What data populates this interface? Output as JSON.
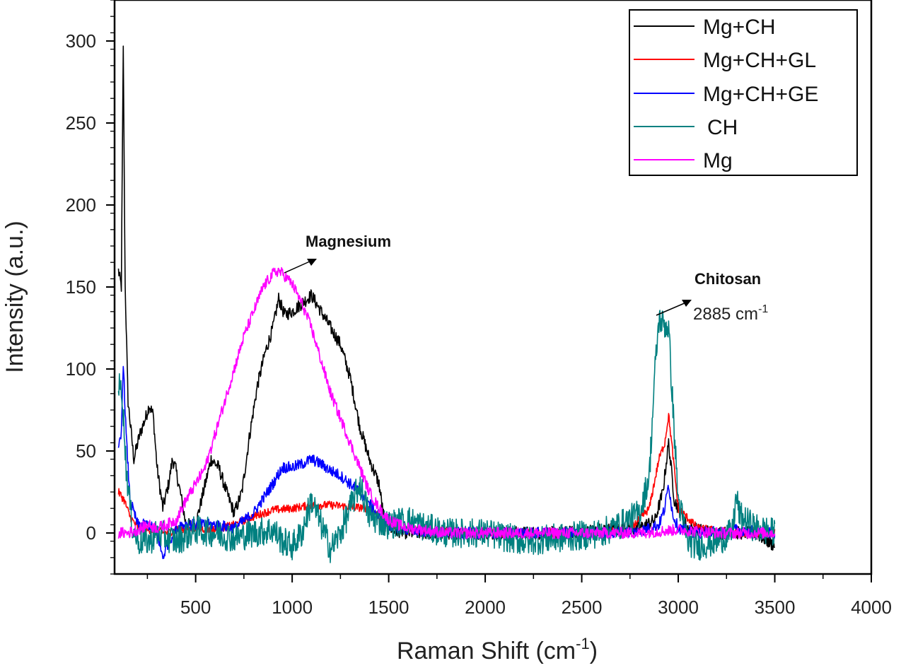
{
  "chart_data": {
    "type": "line",
    "title": "",
    "xlabel": "Raman Shift (cm",
    "xlabel_sup": "-1",
    "xlabel_close": ")",
    "ylabel": "Intensity (a.u.)",
    "xlim": [
      80,
      4000
    ],
    "ylim": [
      -25,
      325
    ],
    "xticks": [
      500,
      1000,
      1500,
      2000,
      2500,
      3000,
      3500,
      4000
    ],
    "yticks": [
      0,
      50,
      100,
      150,
      200,
      250,
      300
    ],
    "grid": false,
    "legend_position": "top-right",
    "legend": [
      {
        "label": "Mg+CH",
        "color": "#000000"
      },
      {
        "label": "Mg+CH+GL",
        "color": "#ff0000"
      },
      {
        "label": "Mg+CH+GE",
        "color": "#0000ff"
      },
      {
        "label": "CH",
        "color": "#008080"
      },
      {
        "label": "Mg",
        "color": "#ff00ff"
      }
    ],
    "annotations": {
      "magnesium": {
        "text": "Magnesium",
        "x": 930,
        "y": 162
      },
      "chitosan": {
        "text": "Chitosan",
        "sub": "2885 cm",
        "sub_sup": "-1",
        "x": 2900,
        "y": 134
      }
    },
    "series": [
      {
        "name": "Mg+CH",
        "color": "#000000",
        "noise": 4,
        "x": [
          100,
          115,
          125,
          135,
          150,
          180,
          210,
          240,
          260,
          280,
          300,
          330,
          360,
          380,
          395,
          420,
          450,
          500,
          540,
          580,
          620,
          660,
          700,
          740,
          780,
          820,
          860,
          900,
          930,
          960,
          1000,
          1050,
          1100,
          1150,
          1200,
          1250,
          1300,
          1350,
          1400,
          1450,
          1480,
          1520,
          1600,
          1800,
          2000,
          2200,
          2400,
          2600,
          2800,
          2880,
          2920,
          2950,
          2980,
          3050,
          3200,
          3400,
          3500
        ],
        "y": [
          160,
          150,
          295,
          150,
          80,
          45,
          60,
          70,
          78,
          72,
          40,
          15,
          30,
          45,
          40,
          25,
          5,
          5,
          25,
          45,
          40,
          25,
          12,
          25,
          60,
          90,
          110,
          125,
          143,
          133,
          135,
          140,
          145,
          135,
          125,
          115,
          95,
          65,
          45,
          30,
          5,
          2,
          0,
          0,
          0,
          0,
          0,
          2,
          3,
          8,
          25,
          55,
          20,
          3,
          0,
          0,
          -8
        ]
      },
      {
        "name": "Mg+CH+GL",
        "color": "#ff0000",
        "noise": 2.5,
        "x": [
          100,
          130,
          160,
          200,
          260,
          300,
          350,
          400,
          500,
          600,
          700,
          800,
          900,
          1000,
          1100,
          1200,
          1300,
          1400,
          1450,
          1500,
          1600,
          1800,
          2000,
          2200,
          2400,
          2600,
          2750,
          2850,
          2900,
          2930,
          2950,
          2970,
          3000,
          3100,
          3300,
          3500
        ],
        "y": [
          25,
          20,
          10,
          3,
          2,
          1,
          0,
          2,
          3,
          2,
          5,
          10,
          14,
          15,
          17,
          17,
          16,
          15,
          10,
          5,
          2,
          1,
          0,
          0,
          0,
          0,
          2,
          15,
          45,
          55,
          72,
          50,
          15,
          3,
          0,
          0
        ]
      },
      {
        "name": "Mg+CH+GE",
        "color": "#0000ff",
        "noise": 3.5,
        "x": [
          100,
          115,
          125,
          140,
          160,
          200,
          260,
          300,
          330,
          360,
          420,
          500,
          600,
          700,
          800,
          900,
          950,
          1000,
          1050,
          1100,
          1150,
          1200,
          1250,
          1300,
          1350,
          1400,
          1450,
          1500,
          1600,
          1800,
          2000,
          2200,
          2400,
          2600,
          2800,
          2900,
          2930,
          2950,
          2970,
          3000,
          3100,
          3300,
          3500
        ],
        "y": [
          50,
          60,
          105,
          60,
          20,
          5,
          5,
          0,
          -15,
          -5,
          5,
          5,
          5,
          3,
          12,
          30,
          40,
          40,
          42,
          45,
          42,
          38,
          35,
          30,
          25,
          18,
          10,
          5,
          2,
          0,
          0,
          0,
          0,
          0,
          1,
          5,
          15,
          30,
          12,
          3,
          0,
          2,
          0
        ]
      },
      {
        "name": "CH",
        "color": "#008080",
        "noise": 9,
        "x": [
          100,
          120,
          140,
          170,
          200,
          260,
          300,
          400,
          500,
          600,
          700,
          800,
          900,
          950,
          1000,
          1050,
          1100,
          1150,
          1200,
          1250,
          1300,
          1350,
          1400,
          1500,
          1600,
          1700,
          1800,
          2000,
          2200,
          2400,
          2600,
          2700,
          2800,
          2850,
          2880,
          2900,
          2920,
          2950,
          2980,
          3000,
          3050,
          3100,
          3200,
          3280,
          3300,
          3320,
          3400,
          3500
        ],
        "y": [
          90,
          85,
          40,
          5,
          -5,
          -5,
          0,
          -5,
          2,
          0,
          -3,
          0,
          2,
          -5,
          -8,
          0,
          20,
          5,
          -10,
          0,
          15,
          30,
          10,
          5,
          8,
          3,
          0,
          0,
          -5,
          -3,
          0,
          5,
          12,
          35,
          100,
          130,
          128,
          125,
          60,
          20,
          -5,
          -8,
          -5,
          0,
          22,
          10,
          3,
          0
        ]
      },
      {
        "name": "Mg",
        "color": "#ff00ff",
        "noise": 3.5,
        "x": [
          100,
          150,
          200,
          250,
          300,
          350,
          400,
          450,
          500,
          550,
          600,
          650,
          700,
          750,
          800,
          850,
          900,
          930,
          960,
          1000,
          1050,
          1100,
          1150,
          1200,
          1250,
          1300,
          1350,
          1400,
          1450,
          1500,
          1550,
          1600,
          1800,
          2000,
          2200,
          2400,
          2600,
          2800,
          3000,
          3200,
          3400,
          3500
        ],
        "y": [
          0,
          0,
          2,
          5,
          3,
          5,
          8,
          20,
          30,
          40,
          60,
          80,
          100,
          120,
          135,
          150,
          158,
          160,
          157,
          152,
          140,
          125,
          105,
          85,
          70,
          55,
          40,
          25,
          15,
          8,
          5,
          3,
          0,
          0,
          0,
          0,
          0,
          0,
          2,
          0,
          0,
          0
        ]
      }
    ]
  }
}
